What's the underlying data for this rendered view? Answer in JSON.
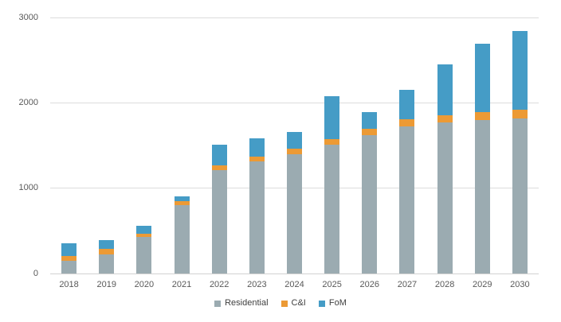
{
  "chart_data": {
    "type": "bar",
    "stacked": true,
    "title": "",
    "xlabel": "",
    "ylabel": "",
    "ylim": [
      0,
      3000
    ],
    "yticks": [
      0,
      1000,
      2000,
      3000
    ],
    "grid": true,
    "legend_position": "bottom",
    "categories": [
      "2018",
      "2019",
      "2020",
      "2021",
      "2022",
      "2023",
      "2024",
      "2025",
      "2026",
      "2027",
      "2028",
      "2029",
      "2030"
    ],
    "series": [
      {
        "name": "Residential",
        "color": "#9babb1",
        "values": [
          150,
          225,
          430,
          800,
          1210,
          1315,
          1400,
          1510,
          1620,
          1725,
          1770,
          1800,
          1820
        ]
      },
      {
        "name": "C&I",
        "color": "#ec9a35",
        "values": [
          55,
          60,
          40,
          50,
          55,
          55,
          65,
          65,
          75,
          85,
          85,
          90,
          100
        ]
      },
      {
        "name": "FoM",
        "color": "#459cc6",
        "values": [
          150,
          105,
          85,
          55,
          245,
          215,
          195,
          505,
          195,
          345,
          600,
          800,
          925
        ]
      }
    ]
  },
  "colors": {
    "gridline": "#dcdcdc",
    "axis_line": "#d2d2d2",
    "tick_text": "#595959",
    "legend_text": "#404040",
    "background": "#ffffff"
  }
}
